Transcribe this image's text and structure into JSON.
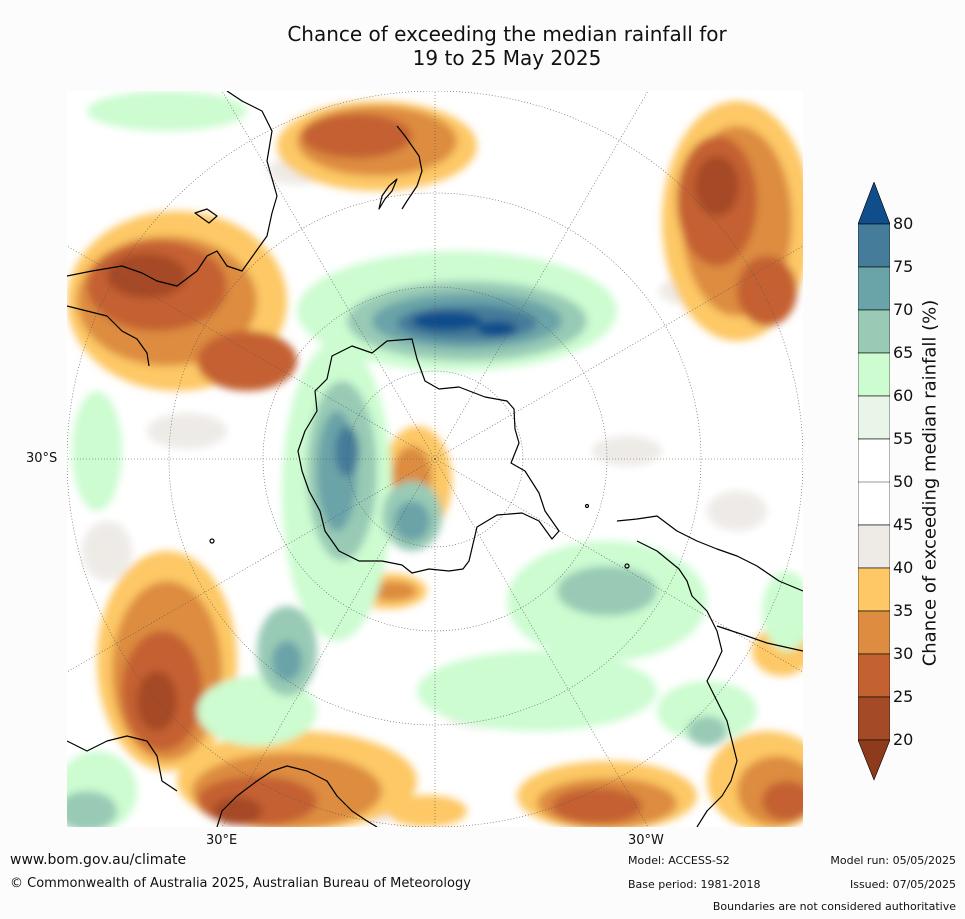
{
  "title": {
    "line1": "Chance of exceeding the median rainfall for",
    "line2": "19 to 25 May 2025"
  },
  "map": {
    "lat_label_left": "30°S",
    "lon_label_bottom_left": "30°E",
    "lon_label_bottom_right": "30°W",
    "colors": {
      "c20_below": "#8e3a1c",
      "c20_25": "#a54a26",
      "c25_30": "#c46130",
      "c30_35": "#dd8c40",
      "c35_40": "#fdc865",
      "c40_45": "#eeebe7",
      "c45_55": "#ffffff",
      "c55_60": "#e9f5e9",
      "c60_65": "#ccfcd0",
      "c65_70": "#98cab5",
      "c70_75": "#6aa3a8",
      "c75_80": "#457c99",
      "c80_above": "#0f4e8b",
      "coastline": "#000000",
      "grid": "#555555"
    }
  },
  "colorbar": {
    "title": "Chance of exceeding median rainfall (%)",
    "ticks": [
      "20",
      "25",
      "30",
      "35",
      "40",
      "45",
      "50",
      "55",
      "60",
      "65",
      "70",
      "75",
      "80"
    ]
  },
  "footer": {
    "website": "www.bom.gov.au/climate",
    "copyright": "© Commonwealth of Australia 2025, Australian Bureau of Meteorology",
    "model": "Model: ACCESS-S2",
    "base_period": "Base period: 1981-2018",
    "model_run": "Model run: 05/05/2025",
    "issued": "Issued: 07/05/2025",
    "disclaimer": "Boundaries are not considered authoritative"
  }
}
